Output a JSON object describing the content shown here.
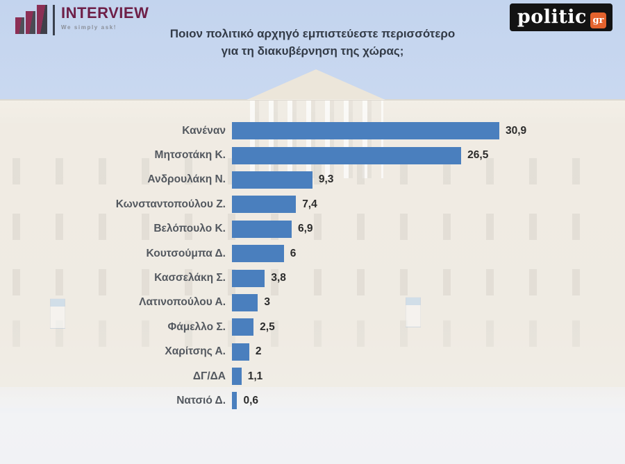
{
  "header": {
    "brand": {
      "name": "INTERVIEW",
      "tagline": "We simply ask!"
    },
    "publisher": {
      "name": "politic",
      "suffix": "gr"
    },
    "title_line1": "Ποιον πολιτικό αρχηγό εμπιστεύεστε περισσότερο",
    "title_line2": "για τη διακυβέρνηση της χώρας;"
  },
  "colors": {
    "bar": "#4a7fbe",
    "title_text": "#333b47",
    "brand_maroon": "#6e1f47",
    "publisher_bg": "#131313",
    "publisher_accent": "#e4632e",
    "sky": "#c6d7ef"
  },
  "chart_data": {
    "type": "bar",
    "orientation": "horizontal",
    "title": "Ποιον πολιτικό αρχηγό εμπιστεύεστε περισσότερο για τη διακυβέρνηση της χώρας;",
    "categories": [
      "Κανέναν",
      "Μητσοτάκη Κ.",
      "Ανδρουλάκη Ν.",
      "Κωνσταντοπούλου Ζ.",
      "Βελόπουλο Κ.",
      "Κουτσούμπα Δ.",
      "Κασσελάκη Σ.",
      "Λατινοπούλου Α.",
      "Φάμελλο Σ.",
      "Χαρίτσης Α.",
      "ΔΓ/ΔΑ",
      "Νατσιό Δ."
    ],
    "values": [
      30.9,
      26.5,
      9.3,
      7.4,
      6.9,
      6,
      3.8,
      3,
      2.5,
      2,
      1.1,
      0.6
    ],
    "values_display": [
      "30,9",
      "26,5",
      "9,3",
      "7,4",
      "6,9",
      "6",
      "3,8",
      "3",
      "2,5",
      "2",
      "1,1",
      "0,6"
    ],
    "unit": "percent",
    "xlim": [
      0,
      31
    ],
    "grid": false,
    "legend": false,
    "bar_color": "#4a7fbe",
    "value_labels": "outside-end"
  }
}
